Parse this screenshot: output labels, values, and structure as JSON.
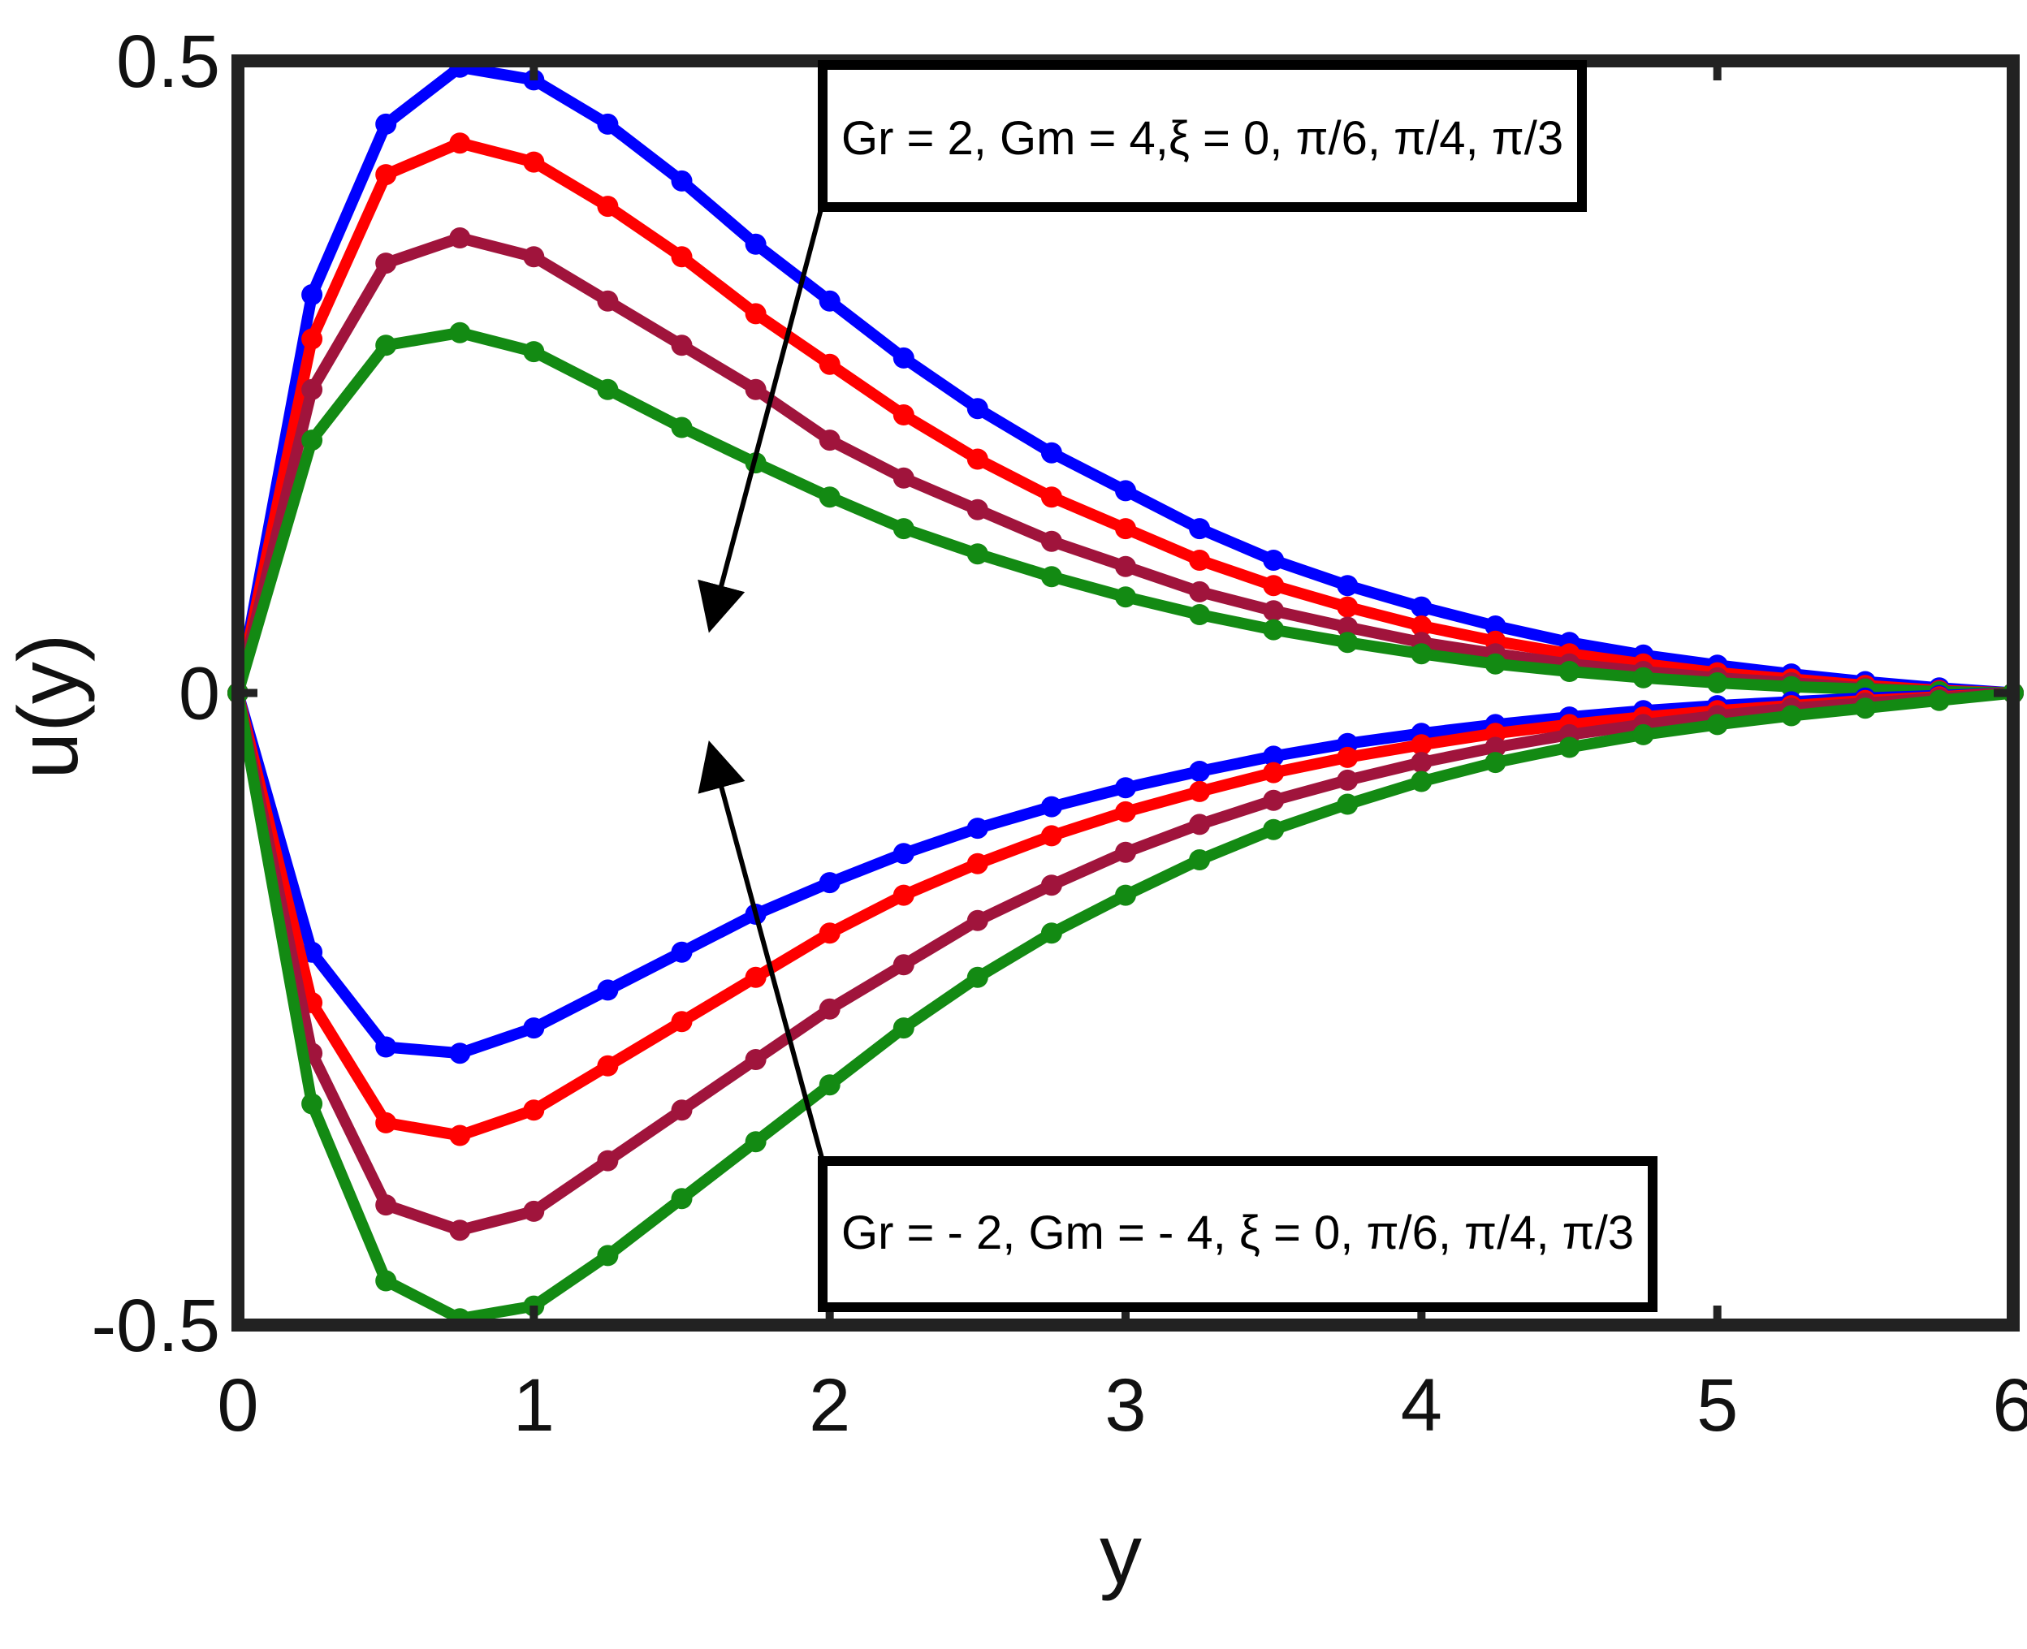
{
  "chart_data": {
    "type": "line",
    "xlabel": "y",
    "ylabel": "u(y)",
    "xlim": [
      0,
      6
    ],
    "ylim": [
      -0.5,
      0.5
    ],
    "xticks": [
      0,
      1,
      2,
      3,
      4,
      5,
      6
    ],
    "yticks": [
      -0.5,
      0,
      0.5
    ],
    "ytick_labels": [
      "-0.5",
      "0",
      "0.5"
    ],
    "grid": false,
    "x": [
      0,
      0.25,
      0.5,
      0.75,
      1.0,
      1.25,
      1.5,
      1.75,
      2.0,
      2.25,
      2.5,
      2.75,
      3.0,
      3.25,
      3.5,
      3.75,
      4.0,
      4.25,
      4.5,
      4.75,
      5.0,
      5.25,
      5.5,
      5.75,
      6.0
    ],
    "series": [
      {
        "color": "#0000ff",
        "values": [
          0,
          0.315,
          0.45,
          0.495,
          0.485,
          0.45,
          0.405,
          0.355,
          0.31,
          0.265,
          0.225,
          0.19,
          0.16,
          0.13,
          0.105,
          0.085,
          0.068,
          0.053,
          0.04,
          0.03,
          0.022,
          0.015,
          0.009,
          0.004,
          0.0
        ]
      },
      {
        "color": "#ff0000",
        "values": [
          0,
          0.28,
          0.41,
          0.435,
          0.42,
          0.385,
          0.345,
          0.3,
          0.26,
          0.22,
          0.185,
          0.155,
          0.13,
          0.105,
          0.085,
          0.068,
          0.053,
          0.041,
          0.031,
          0.023,
          0.016,
          0.011,
          0.006,
          0.002,
          0.0
        ]
      },
      {
        "color": "#a0143c",
        "values": [
          0,
          0.24,
          0.34,
          0.36,
          0.345,
          0.31,
          0.275,
          0.24,
          0.2,
          0.17,
          0.145,
          0.12,
          0.1,
          0.08,
          0.065,
          0.052,
          0.04,
          0.031,
          0.023,
          0.017,
          0.012,
          0.008,
          0.004,
          0.001,
          0.0
        ]
      },
      {
        "color": "#138a13",
        "values": [
          0,
          0.2,
          0.275,
          0.285,
          0.27,
          0.24,
          0.21,
          0.182,
          0.155,
          0.13,
          0.11,
          0.092,
          0.076,
          0.062,
          0.05,
          0.04,
          0.031,
          0.023,
          0.017,
          0.012,
          0.008,
          0.005,
          0.003,
          0.001,
          0.0
        ]
      },
      {
        "color": "#0000ff",
        "values": [
          0,
          -0.205,
          -0.28,
          -0.285,
          -0.265,
          -0.235,
          -0.205,
          -0.175,
          -0.15,
          -0.127,
          -0.107,
          -0.09,
          -0.075,
          -0.062,
          -0.05,
          -0.04,
          -0.032,
          -0.025,
          -0.019,
          -0.014,
          -0.01,
          -0.007,
          -0.004,
          -0.002,
          0.0
        ]
      },
      {
        "color": "#ff0000",
        "values": [
          0,
          -0.245,
          -0.34,
          -0.35,
          -0.33,
          -0.295,
          -0.26,
          -0.225,
          -0.19,
          -0.16,
          -0.135,
          -0.113,
          -0.094,
          -0.078,
          -0.063,
          -0.051,
          -0.041,
          -0.032,
          -0.025,
          -0.019,
          -0.014,
          -0.01,
          -0.006,
          -0.003,
          0.0
        ]
      },
      {
        "color": "#a0143c",
        "values": [
          0,
          -0.285,
          -0.405,
          -0.425,
          -0.41,
          -0.37,
          -0.33,
          -0.29,
          -0.25,
          -0.215,
          -0.18,
          -0.152,
          -0.126,
          -0.104,
          -0.085,
          -0.069,
          -0.055,
          -0.043,
          -0.033,
          -0.025,
          -0.018,
          -0.012,
          -0.008,
          -0.004,
          0.0
        ]
      },
      {
        "color": "#138a13",
        "values": [
          0,
          -0.325,
          -0.465,
          -0.495,
          -0.485,
          -0.445,
          -0.4,
          -0.355,
          -0.31,
          -0.265,
          -0.225,
          -0.19,
          -0.16,
          -0.132,
          -0.108,
          -0.088,
          -0.07,
          -0.055,
          -0.043,
          -0.033,
          -0.025,
          -0.018,
          -0.012,
          -0.006,
          0.0
        ]
      }
    ],
    "annotations": [
      {
        "text": "Gr = 2, Gm = 4,ξ = 0, π/6, π/4, π/3",
        "arrow_to": [
          1.6,
          0.055
        ]
      },
      {
        "text": "Gr = - 2, Gm = - 4, ξ = 0, π/6, π/4, π/3",
        "arrow_to": [
          1.6,
          -0.045
        ]
      }
    ]
  }
}
